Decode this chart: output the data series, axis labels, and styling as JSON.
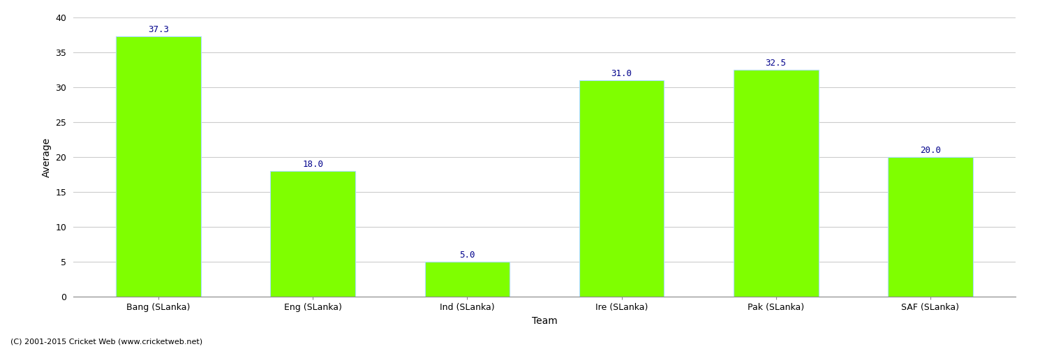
{
  "categories": [
    "Bang (SLanka)",
    "Eng (SLanka)",
    "Ind (SLanka)",
    "Ire (SLanka)",
    "Pak (SLanka)",
    "SAF (SLanka)"
  ],
  "values": [
    37.3,
    18.0,
    5.0,
    31.0,
    32.5,
    20.0
  ],
  "bar_color": "#7fff00",
  "bar_edgecolor": "#aaddff",
  "label_color": "#00008B",
  "xlabel": "Team",
  "ylabel": "Average",
  "ylim": [
    0,
    40
  ],
  "yticks": [
    0,
    5,
    10,
    15,
    20,
    25,
    30,
    35,
    40
  ],
  "grid_color": "#cccccc",
  "background_color": "#ffffff",
  "footnote": "(C) 2001-2015 Cricket Web (www.cricketweb.net)",
  "label_fontsize": 9,
  "axis_label_fontsize": 10,
  "tick_fontsize": 9,
  "footnote_fontsize": 8,
  "bar_width": 0.55
}
